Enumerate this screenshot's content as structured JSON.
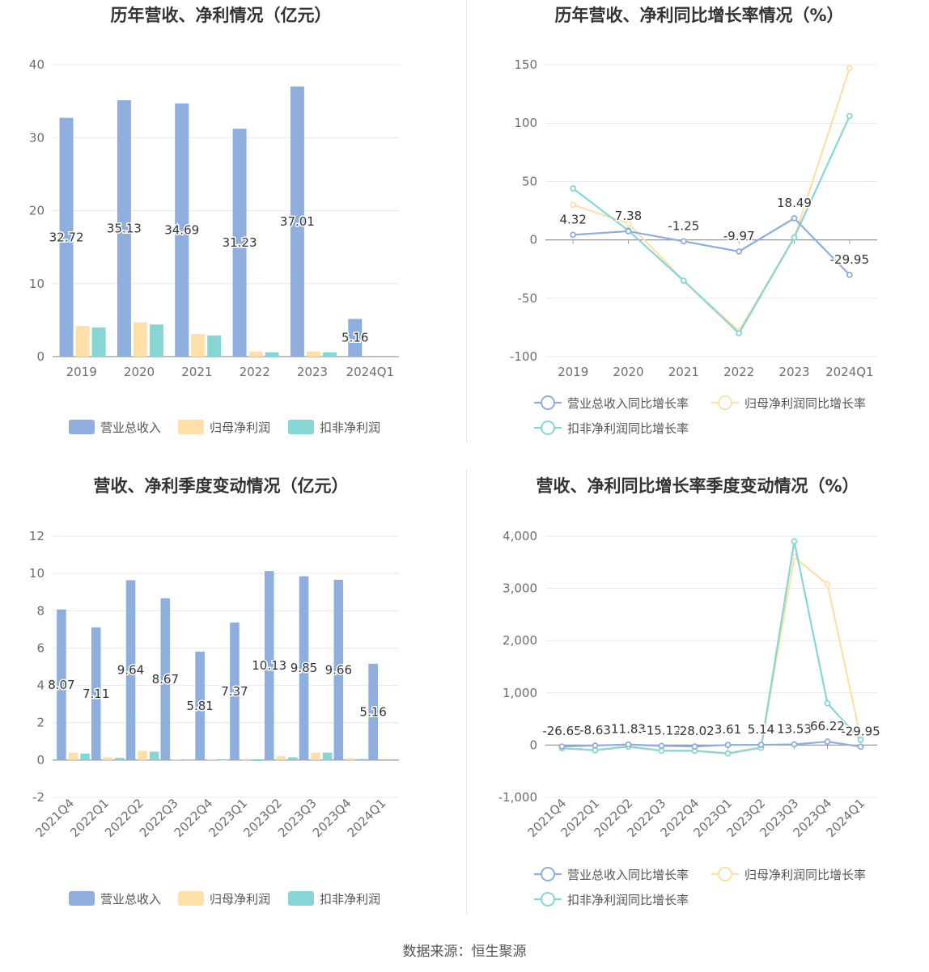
{
  "source": "数据来源：恒生聚源",
  "colors": {
    "revenue": "#8eaede",
    "parent_profit": "#ffdfa8",
    "deducted_profit": "#86d6d6",
    "grid": "#e6e8f0",
    "axis": "#999999"
  },
  "chart_data": [
    {
      "type": "bar",
      "title": "历年营收、净利情况（亿元）",
      "categories": [
        "2019",
        "2020",
        "2021",
        "2022",
        "2023",
        "2024Q1"
      ],
      "ylim": [
        0,
        40
      ],
      "yticks": [
        "0",
        "10",
        "20",
        "30",
        "40"
      ],
      "series": [
        {
          "name": "营业总收入",
          "values": [
            32.72,
            35.13,
            34.69,
            31.23,
            37.01,
            5.16
          ],
          "labels": [
            "32.72",
            "35.13",
            "34.69",
            "31.23",
            "37.01",
            "5.16"
          ]
        },
        {
          "name": "归母净利润",
          "values": [
            4.2,
            4.7,
            3.1,
            0.7,
            0.7,
            null
          ]
        },
        {
          "name": "扣非净利润",
          "values": [
            4.0,
            4.4,
            2.9,
            0.6,
            0.6,
            null
          ]
        }
      ],
      "legend": "bottom"
    },
    {
      "type": "line",
      "title": "历年营收、净利同比增长率情况（%）",
      "categories": [
        "2019",
        "2020",
        "2021",
        "2022",
        "2023",
        "2024Q1"
      ],
      "ylim": [
        -100,
        150
      ],
      "yticks": [
        "-100",
        "-50",
        "0",
        "50",
        "100",
        "150"
      ],
      "series": [
        {
          "name": "营业总收入同比增长率",
          "values": [
            4.32,
            7.38,
            -1.25,
            -9.97,
            18.49,
            -29.95
          ],
          "labels": [
            "4.32",
            "7.38",
            "-1.25",
            "-9.97",
            "18.49",
            "-29.95"
          ]
        },
        {
          "name": "归母净利润同比增长率",
          "values": [
            30,
            14,
            -35,
            -78,
            2,
            147
          ]
        },
        {
          "name": "扣非净利润同比增长率",
          "values": [
            44,
            8,
            -35,
            -80,
            2,
            106
          ]
        }
      ],
      "legend": "bottom"
    },
    {
      "type": "bar",
      "title": "营收、净利季度变动情况（亿元）",
      "categories": [
        "2021Q4",
        "2022Q1",
        "2022Q2",
        "2022Q3",
        "2022Q4",
        "2023Q1",
        "2023Q2",
        "2023Q3",
        "2023Q4",
        "2024Q1"
      ],
      "ylim": [
        -2,
        12
      ],
      "yticks": [
        "-2",
        "0",
        "2",
        "4",
        "6",
        "8",
        "10",
        "12"
      ],
      "series": [
        {
          "name": "营业总收入",
          "values": [
            8.07,
            7.11,
            9.64,
            8.67,
            5.81,
            7.37,
            10.13,
            9.85,
            9.66,
            5.16
          ],
          "labels": [
            "8.07",
            "7.11",
            "9.64",
            "8.67",
            "5.81",
            "7.37",
            "10.13",
            "9.85",
            "9.66",
            "5.16"
          ]
        },
        {
          "name": "归母净利润",
          "values": [
            0.4,
            0.15,
            0.5,
            0.02,
            0.02,
            0.06,
            0.2,
            0.4,
            0.1,
            null
          ]
        },
        {
          "name": "扣非净利润",
          "values": [
            0.35,
            0.12,
            0.45,
            0.01,
            -0.02,
            -0.05,
            0.15,
            0.4,
            0.06,
            null
          ]
        }
      ],
      "legend": "bottom"
    },
    {
      "type": "line",
      "title": "营收、净利同比增长率季度变动情况（%）",
      "categories": [
        "2021Q4",
        "2022Q1",
        "2022Q2",
        "2022Q3",
        "2022Q4",
        "2023Q1",
        "2023Q2",
        "2023Q3",
        "2023Q4",
        "2024Q1"
      ],
      "ylim": [
        -1000,
        4000
      ],
      "yticks": [
        "-1,000",
        "0",
        "1,000",
        "2,000",
        "3,000",
        "4,000"
      ],
      "series": [
        {
          "name": "营业总收入同比增长率",
          "values": [
            -26.65,
            -8.63,
            11.83,
            -15.12,
            -28.02,
            3.61,
            5.14,
            13.53,
            66.22,
            -29.95
          ],
          "labels": [
            "-26.65",
            "-8.63",
            "11.83",
            "-15.12",
            "-28.02",
            "3.61",
            "5.14",
            "13.53",
            "66.22",
            "-29.95"
          ]
        },
        {
          "name": "归母净利润同比增长率",
          "values": [
            -60,
            -90,
            -20,
            -100,
            -110,
            -150,
            -40,
            3600,
            3080,
            140
          ]
        },
        {
          "name": "扣非净利润同比增长率",
          "values": [
            -60,
            -100,
            -30,
            -110,
            -110,
            -160,
            -50,
            3900,
            800,
            100
          ]
        }
      ],
      "legend": "bottom"
    }
  ]
}
